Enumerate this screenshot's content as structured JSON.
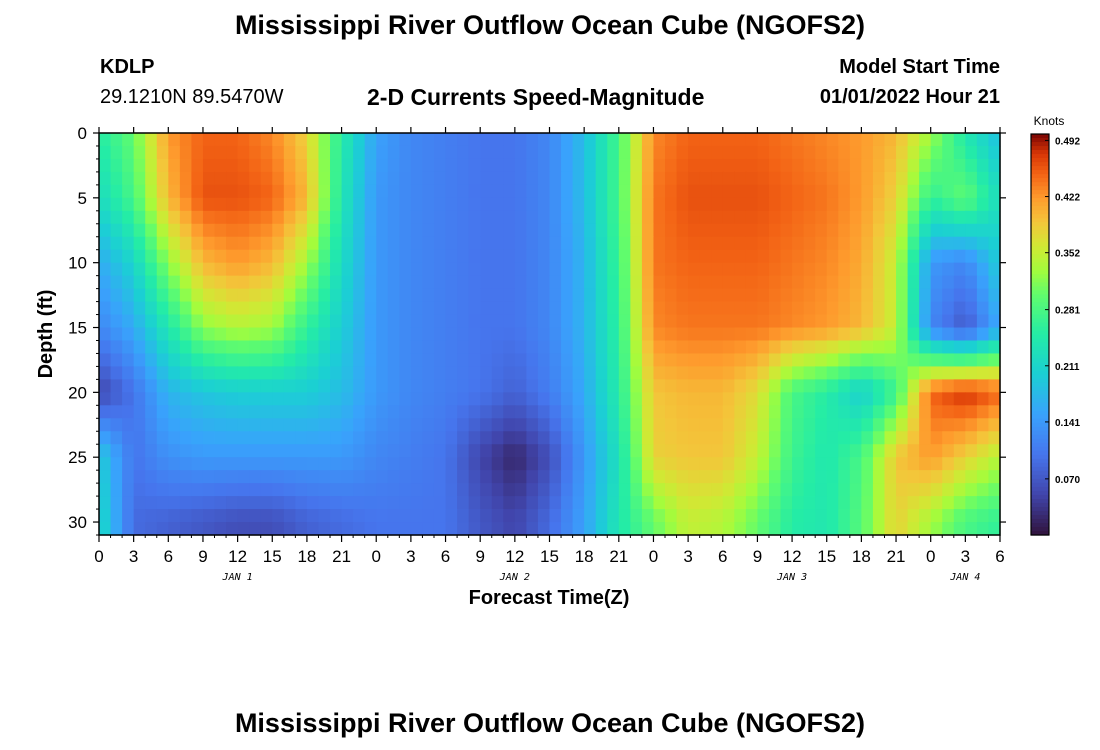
{
  "header": {
    "title": "Mississippi River Outflow Ocean Cube (NGOFS2)",
    "station": "KDLP",
    "coords": "29.1210N  89.5470W",
    "subtitle": "2-D Currents Speed-Magnitude",
    "model_start_label": "Model Start Time",
    "model_start_value": "01/01/2022 Hour 21"
  },
  "footer": {
    "title": "Mississippi River Outflow Ocean Cube (NGOFS2)"
  },
  "chart_data": {
    "type": "heatmap",
    "xlabel": "Forecast Time(Z)",
    "ylabel": "Depth (ft)",
    "x_range_hours": [
      0,
      78
    ],
    "y_range": [
      0,
      31
    ],
    "y_ticks": [
      0,
      5,
      10,
      15,
      20,
      25,
      30
    ],
    "x_tick_labels": [
      "0",
      "3",
      "6",
      "9",
      "12",
      "15",
      "18",
      "21",
      "0",
      "3",
      "6",
      "9",
      "12",
      "15",
      "18",
      "21",
      "0",
      "3",
      "6",
      "9",
      "12",
      "15",
      "18",
      "21",
      "0",
      "3",
      "6"
    ],
    "date_labels": [
      {
        "label": "JAN 1",
        "hour": 12
      },
      {
        "label": "JAN 2",
        "hour": 36
      },
      {
        "label": "JAN 3",
        "hour": 60
      },
      {
        "label": "JAN 4",
        "hour": 75
      }
    ],
    "colorbar": {
      "label": "Knots",
      "range": [
        0.0,
        0.5
      ],
      "ticks": [
        0.07,
        0.141,
        0.211,
        0.281,
        0.352,
        0.422,
        0.492
      ],
      "tick_labels": [
        "0.070",
        "0.141",
        "0.211",
        "0.281",
        "0.352",
        "0.422",
        "0.492"
      ]
    },
    "depths": [
      0,
      5,
      10,
      15,
      20,
      25,
      30
    ],
    "times": [
      0,
      3,
      6,
      9,
      12,
      15,
      18,
      21,
      24,
      27,
      30,
      33,
      36,
      39,
      42,
      45,
      48,
      51,
      54,
      57,
      60,
      63,
      66,
      69,
      72,
      75,
      78
    ],
    "values": [
      [
        0.25,
        0.3,
        0.42,
        0.45,
        0.45,
        0.43,
        0.38,
        0.25,
        0.15,
        0.12,
        0.11,
        0.1,
        0.1,
        0.12,
        0.18,
        0.28,
        0.43,
        0.45,
        0.45,
        0.45,
        0.44,
        0.43,
        0.42,
        0.4,
        0.33,
        0.24,
        0.18
      ],
      [
        0.22,
        0.28,
        0.4,
        0.46,
        0.46,
        0.45,
        0.4,
        0.24,
        0.14,
        0.12,
        0.11,
        0.1,
        0.1,
        0.12,
        0.18,
        0.28,
        0.44,
        0.46,
        0.46,
        0.46,
        0.45,
        0.44,
        0.42,
        0.38,
        0.26,
        0.3,
        0.22
      ],
      [
        0.16,
        0.21,
        0.32,
        0.4,
        0.42,
        0.4,
        0.33,
        0.22,
        0.14,
        0.12,
        0.11,
        0.1,
        0.1,
        0.12,
        0.17,
        0.27,
        0.44,
        0.45,
        0.45,
        0.45,
        0.44,
        0.43,
        0.41,
        0.35,
        0.14,
        0.12,
        0.2
      ],
      [
        0.12,
        0.16,
        0.24,
        0.32,
        0.34,
        0.33,
        0.26,
        0.2,
        0.14,
        0.12,
        0.11,
        0.1,
        0.1,
        0.12,
        0.17,
        0.26,
        0.43,
        0.44,
        0.44,
        0.44,
        0.43,
        0.42,
        0.4,
        0.35,
        0.12,
        0.07,
        0.16
      ],
      [
        0.05,
        0.1,
        0.17,
        0.19,
        0.2,
        0.2,
        0.2,
        0.18,
        0.14,
        0.12,
        0.11,
        0.1,
        0.08,
        0.11,
        0.16,
        0.25,
        0.39,
        0.4,
        0.4,
        0.37,
        0.28,
        0.25,
        0.2,
        0.27,
        0.45,
        0.48,
        0.45
      ],
      [
        0.2,
        0.1,
        0.13,
        0.14,
        0.14,
        0.14,
        0.14,
        0.14,
        0.12,
        0.11,
        0.1,
        0.05,
        0.02,
        0.06,
        0.14,
        0.23,
        0.38,
        0.39,
        0.39,
        0.35,
        0.27,
        0.24,
        0.28,
        0.39,
        0.42,
        0.38,
        0.34
      ],
      [
        0.22,
        0.09,
        0.08,
        0.07,
        0.06,
        0.06,
        0.08,
        0.09,
        0.1,
        0.1,
        0.1,
        0.07,
        0.05,
        0.09,
        0.15,
        0.24,
        0.3,
        0.35,
        0.34,
        0.3,
        0.25,
        0.24,
        0.29,
        0.38,
        0.33,
        0.28,
        0.26
      ]
    ]
  }
}
